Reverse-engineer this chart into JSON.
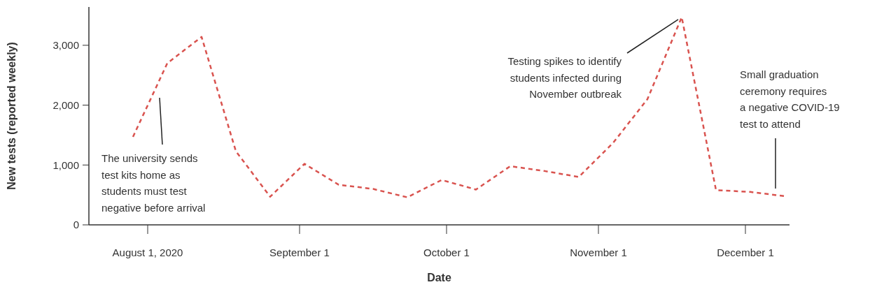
{
  "chart_data": {
    "type": "line",
    "xlabel": "Date",
    "ylabel": "New tests (reported weekly)",
    "x": [
      "2020-07-29",
      "2020-08-05",
      "2020-08-12",
      "2020-08-19",
      "2020-08-26",
      "2020-09-02",
      "2020-09-09",
      "2020-09-16",
      "2020-09-23",
      "2020-09-30",
      "2020-10-07",
      "2020-10-14",
      "2020-10-21",
      "2020-10-28",
      "2020-11-04",
      "2020-11-11",
      "2020-11-18",
      "2020-11-25",
      "2020-12-02",
      "2020-12-09"
    ],
    "series": [
      {
        "color": "#d9534f",
        "values": [
          1470,
          2700,
          3140,
          1230,
          470,
          1020,
          670,
          600,
          460,
          750,
          590,
          980,
          900,
          800,
          1370,
          2100,
          3470,
          580,
          550,
          480
        ]
      }
    ],
    "xlim": [
      "2020-07-20",
      "2020-12-10"
    ],
    "xticks": [
      {
        "value": "2020-08-01",
        "label": "August 1, 2020"
      },
      {
        "value": "2020-09-01",
        "label": "September 1"
      },
      {
        "value": "2020-10-01",
        "label": "October 1"
      },
      {
        "value": "2020-11-01",
        "label": "November 1"
      },
      {
        "value": "2020-12-01",
        "label": "December 1"
      }
    ],
    "ylim": [
      0,
      3640
    ],
    "yticks": [
      0,
      {
        "value": 1000,
        "label": "1,000"
      },
      {
        "value": 2000,
        "label": "2,000"
      },
      {
        "value": 3000,
        "label": "3,000"
      }
    ],
    "grid": false,
    "marker": "none",
    "line_style": "dashed",
    "annotations": [
      "The university sends\ntest kits home as\nstudents must test\nnegative before arrival",
      {
        "text": "Testing spikes to identify\nstudents infected during\nNovember outbreak",
        "x": "2020-11-18",
        "y": 3470
      },
      "Small graduation\nceremony requires\na negative COVID-19\ntest to attend"
    ]
  }
}
